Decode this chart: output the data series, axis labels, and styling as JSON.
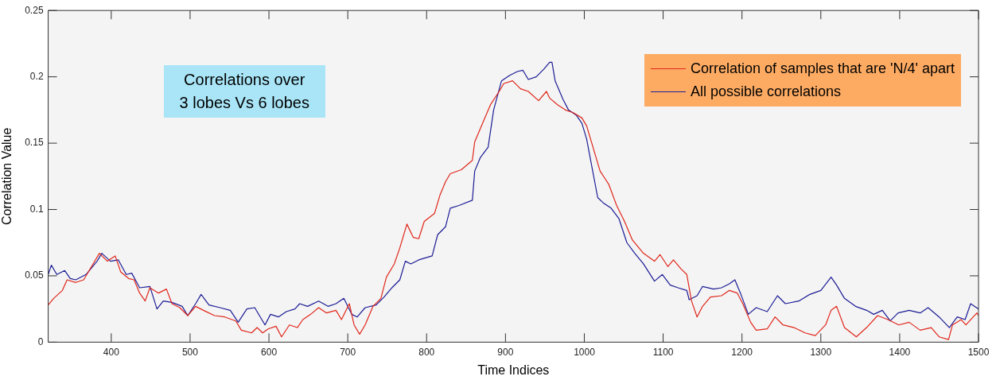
{
  "chart_data": {
    "type": "line",
    "xlabel": "Time Indices",
    "ylabel": "Correlation Value",
    "xlim": [
      320,
      1500
    ],
    "xticks": [
      400,
      500,
      600,
      700,
      800,
      900,
      1000,
      1100,
      1200,
      1300,
      1400,
      1500
    ],
    "ylim": [
      0,
      0.25
    ],
    "yticks": [
      0,
      0.05,
      0.1,
      0.15,
      0.2,
      0.25
    ],
    "grid": false,
    "legend": "top right",
    "annotations": [
      "Correlations over\n3 lobes Vs 6 lobes"
    ],
    "series": [
      {
        "name": "Correlation of samples that are 'N/4' apart",
        "color": "#e0261a",
        "x": [
          320,
          327,
          338,
          344,
          355,
          365,
          375,
          385,
          395,
          405,
          412,
          422,
          429,
          436,
          443,
          449,
          460,
          470,
          477,
          487,
          497,
          507,
          517,
          531,
          544,
          558,
          565,
          578,
          585,
          592,
          599,
          609,
          616,
          626,
          636,
          643,
          653,
          663,
          673,
          685,
          692,
          702,
          708,
          715,
          722,
          732,
          742,
          749,
          759,
          766,
          775,
          783,
          790,
          797,
          810,
          817,
          824,
          830,
          844,
          858,
          861,
          871,
          881,
          892,
          898,
          909,
          919,
          929,
          942,
          952,
          956,
          966,
          976,
          986,
          997,
          1003,
          1014,
          1020,
          1031,
          1041,
          1051,
          1061,
          1075,
          1089,
          1096,
          1106,
          1113,
          1123,
          1130,
          1136,
          1143,
          1150,
          1160,
          1174,
          1184,
          1194,
          1201,
          1211,
          1218,
          1232,
          1242,
          1252,
          1266,
          1280,
          1293,
          1306,
          1313,
          1320,
          1330,
          1345,
          1358,
          1372,
          1385,
          1399,
          1412,
          1426,
          1440,
          1450,
          1462,
          1467,
          1478,
          1484,
          1498,
          1500
        ],
        "values": [
          0.028,
          0.033,
          0.039,
          0.047,
          0.045,
          0.047,
          0.057,
          0.067,
          0.061,
          0.065,
          0.053,
          0.048,
          0.047,
          0.037,
          0.031,
          0.041,
          0.037,
          0.04,
          0.029,
          0.026,
          0.02,
          0.027,
          0.024,
          0.02,
          0.019,
          0.016,
          0.009,
          0.007,
          0.011,
          0.007,
          0.01,
          0.012,
          0.004,
          0.013,
          0.011,
          0.017,
          0.021,
          0.026,
          0.022,
          0.024,
          0.017,
          0.029,
          0.013,
          0.006,
          0.013,
          0.027,
          0.033,
          0.049,
          0.059,
          0.071,
          0.089,
          0.079,
          0.078,
          0.091,
          0.097,
          0.111,
          0.121,
          0.127,
          0.13,
          0.137,
          0.151,
          0.165,
          0.179,
          0.189,
          0.195,
          0.197,
          0.191,
          0.189,
          0.182,
          0.189,
          0.184,
          0.179,
          0.175,
          0.173,
          0.169,
          0.163,
          0.141,
          0.129,
          0.119,
          0.103,
          0.091,
          0.077,
          0.067,
          0.061,
          0.066,
          0.057,
          0.062,
          0.055,
          0.051,
          0.031,
          0.019,
          0.027,
          0.034,
          0.035,
          0.039,
          0.037,
          0.029,
          0.015,
          0.009,
          0.01,
          0.019,
          0.013,
          0.011,
          0.007,
          0.005,
          0.013,
          0.024,
          0.027,
          0.011,
          0.004,
          0.011,
          0.02,
          0.017,
          0.013,
          0.015,
          0.009,
          0.011,
          0.004,
          0.002,
          0.013,
          0.017,
          0.013,
          0.022,
          0.02
        ]
      },
      {
        "name": "All possible correlations",
        "color": "#1c1c96",
        "x": [
          320,
          324,
          331,
          341,
          348,
          355,
          368,
          382,
          388,
          399,
          409,
          419,
          426,
          436,
          449,
          458,
          466,
          477,
          490,
          497,
          507,
          514,
          524,
          538,
          551,
          561,
          572,
          582,
          589,
          595,
          602,
          612,
          622,
          633,
          639,
          649,
          663,
          675,
          685,
          695,
          705,
          712,
          722,
          736,
          746,
          756,
          766,
          773,
          780,
          790,
          807,
          814,
          824,
          830,
          841,
          858,
          861,
          868,
          878,
          885,
          895,
          905,
          915,
          922,
          929,
          939,
          949,
          956,
          959,
          963,
          973,
          980,
          990,
          997,
          1003,
          1010,
          1017,
          1024,
          1034,
          1044,
          1054,
          1064,
          1075,
          1089,
          1099,
          1109,
          1119,
          1130,
          1133,
          1143,
          1150,
          1164,
          1174,
          1184,
          1191,
          1198,
          1208,
          1218,
          1232,
          1245,
          1255,
          1272,
          1286,
          1300,
          1313,
          1320,
          1330,
          1344,
          1358,
          1367,
          1378,
          1388,
          1398,
          1412,
          1426,
          1436,
          1450,
          1463,
          1473,
          1483,
          1490,
          1500
        ],
        "values": [
          0.051,
          0.058,
          0.051,
          0.054,
          0.048,
          0.047,
          0.051,
          0.061,
          0.067,
          0.061,
          0.062,
          0.051,
          0.052,
          0.041,
          0.042,
          0.025,
          0.031,
          0.03,
          0.027,
          0.02,
          0.029,
          0.036,
          0.028,
          0.026,
          0.024,
          0.015,
          0.025,
          0.026,
          0.019,
          0.013,
          0.021,
          0.019,
          0.023,
          0.025,
          0.029,
          0.027,
          0.031,
          0.027,
          0.029,
          0.033,
          0.021,
          0.019,
          0.026,
          0.028,
          0.034,
          0.041,
          0.047,
          0.061,
          0.059,
          0.062,
          0.065,
          0.081,
          0.087,
          0.101,
          0.103,
          0.107,
          0.129,
          0.139,
          0.147,
          0.175,
          0.197,
          0.201,
          0.204,
          0.205,
          0.198,
          0.2,
          0.206,
          0.211,
          0.211,
          0.197,
          0.183,
          0.175,
          0.171,
          0.165,
          0.153,
          0.131,
          0.109,
          0.105,
          0.101,
          0.093,
          0.075,
          0.067,
          0.059,
          0.046,
          0.051,
          0.043,
          0.041,
          0.039,
          0.032,
          0.035,
          0.042,
          0.04,
          0.041,
          0.044,
          0.047,
          0.037,
          0.021,
          0.026,
          0.023,
          0.035,
          0.029,
          0.031,
          0.036,
          0.039,
          0.049,
          0.043,
          0.033,
          0.027,
          0.024,
          0.021,
          0.024,
          0.016,
          0.022,
          0.024,
          0.022,
          0.026,
          0.019,
          0.011,
          0.019,
          0.017,
          0.029,
          0.025
        ]
      }
    ]
  }
}
